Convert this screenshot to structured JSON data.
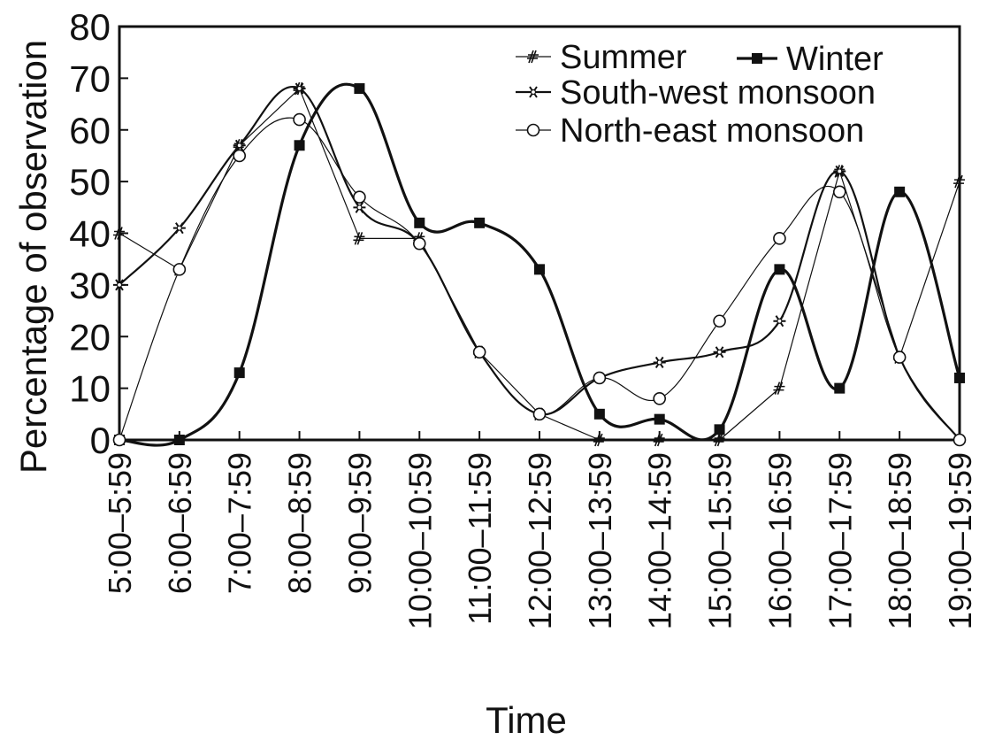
{
  "chart_data": {
    "type": "line",
    "title": "",
    "xlabel": "Time",
    "ylabel": "Percentage of observation",
    "ylim": [
      0,
      80
    ],
    "yticks": [
      "0",
      "10",
      "20",
      "30",
      "40",
      "50",
      "60",
      "70",
      "80"
    ],
    "grid": false,
    "legend_position": "top-right",
    "categories": [
      "5:00–5:59",
      "6:00–6:59",
      "7:00–7:59",
      "8:00–8:59",
      "9:00–9:59",
      "10:00–10:59",
      "11:00–11:59",
      "12:00–12:59",
      "13:00–13:59",
      "14:00–14:59",
      "15:00–15:59",
      "16:00–16:59",
      "17:00–17:59",
      "18:00–18:59",
      "19:00–19:59"
    ],
    "series": [
      {
        "name": "Summer",
        "marker": "hash",
        "style": "straight-thin",
        "values": [
          40,
          33,
          57,
          68,
          39,
          39,
          17,
          5,
          0,
          0,
          0,
          10,
          52,
          16,
          50
        ]
      },
      {
        "name": "Winter",
        "marker": "filled-square",
        "style": "smooth-thick",
        "values": [
          0,
          0,
          13,
          57,
          68,
          42,
          42,
          33,
          5,
          4,
          2,
          33,
          10,
          48,
          12
        ]
      },
      {
        "name": "South-west monsoon",
        "marker": "star",
        "style": "smooth-medium",
        "values": [
          30,
          41,
          57,
          68,
          45,
          38,
          17,
          5,
          12,
          15,
          17,
          23,
          52,
          16,
          0
        ]
      },
      {
        "name": "North-east monsoon",
        "marker": "open-circle",
        "style": "smooth-thin",
        "values": [
          0,
          33,
          55,
          62,
          47,
          38,
          17,
          5,
          12,
          8,
          23,
          39,
          48,
          16,
          0
        ]
      }
    ]
  },
  "legend": {
    "rows": [
      [
        "Summer",
        "Winter"
      ],
      [
        "South-west monsoon"
      ],
      [
        "North-east monsoon"
      ]
    ]
  }
}
